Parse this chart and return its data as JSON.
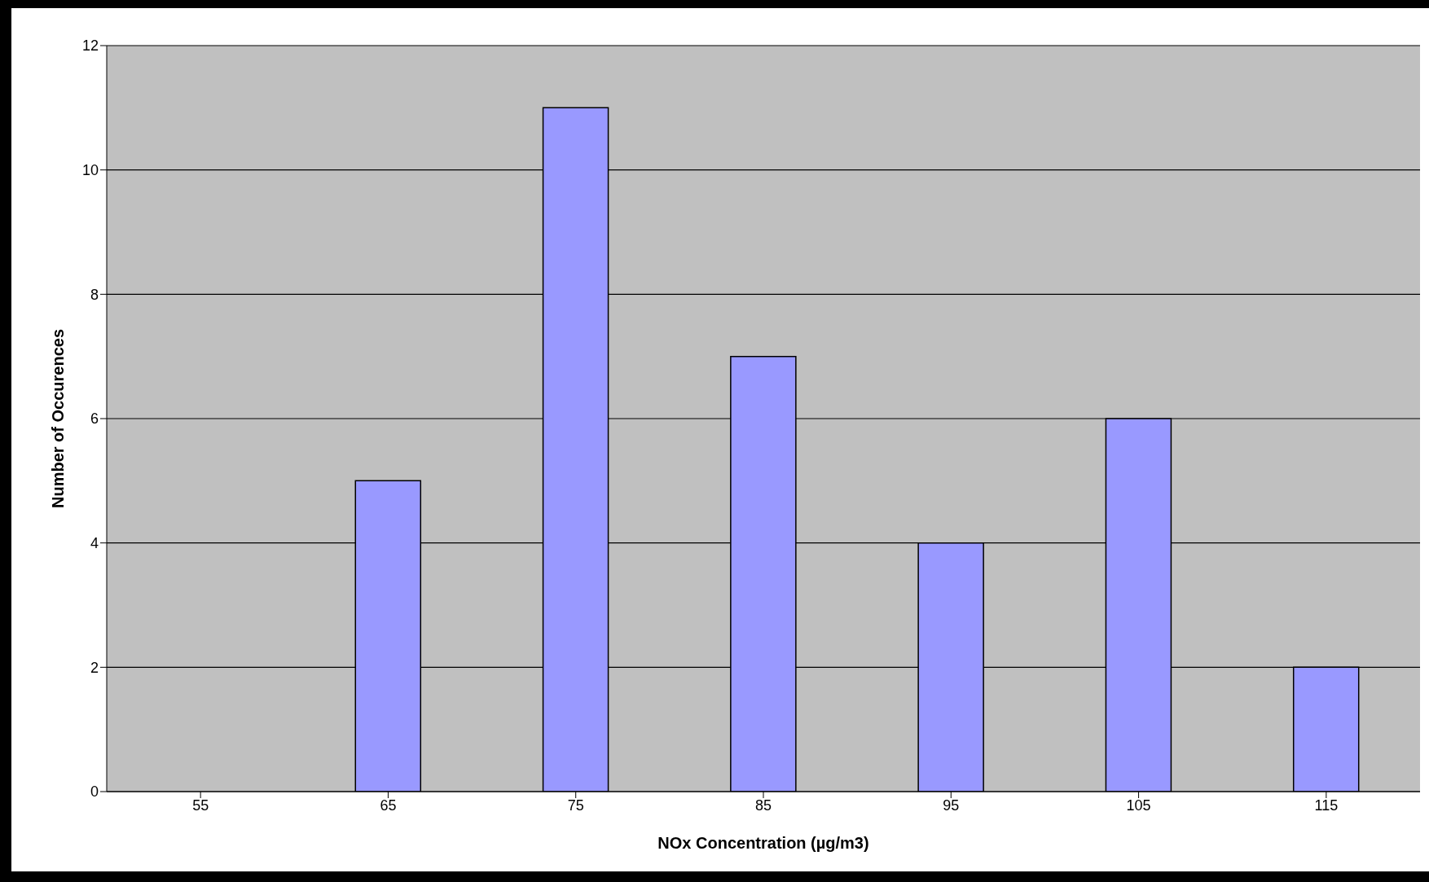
{
  "chart_data": {
    "type": "bar",
    "xlabel": "NOx Concentration (µg/m3)",
    "ylabel": "Number of Occurences",
    "categories": [
      "55",
      "65",
      "75",
      "85",
      "95",
      "105",
      "115"
    ],
    "values": [
      0,
      5,
      11,
      7,
      4,
      6,
      2
    ],
    "color": "#9999ff",
    "ylim": [
      0,
      12
    ],
    "yticks": [
      0,
      2,
      4,
      6,
      8,
      10,
      12
    ],
    "grid": "y",
    "legend": false
  }
}
